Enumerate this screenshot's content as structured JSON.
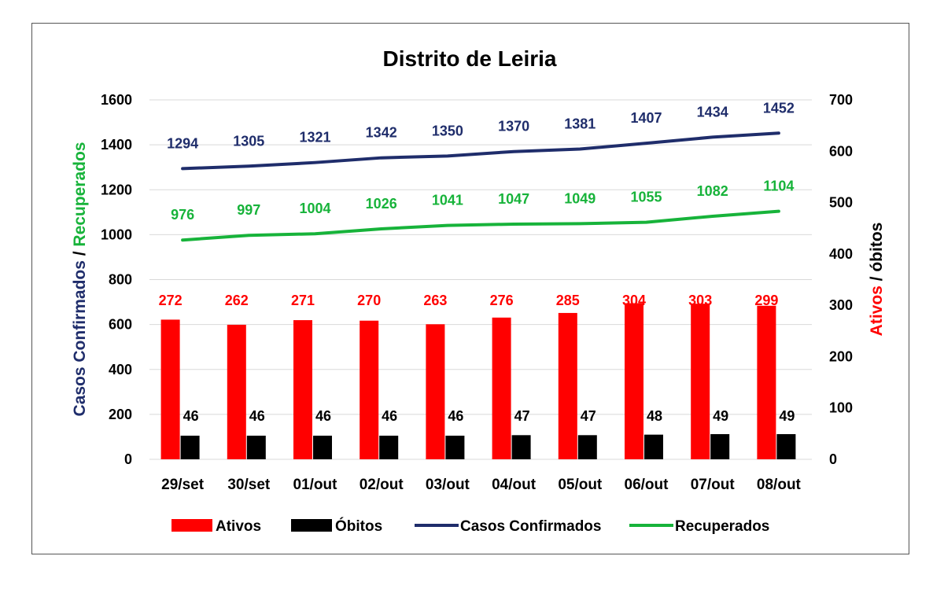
{
  "chart_data": {
    "type": "bar",
    "title": "Distrito de Leiria",
    "categories": [
      "29/set",
      "30/set",
      "01/out",
      "02/out",
      "03/out",
      "04/out",
      "05/out",
      "06/out",
      "07/out",
      "08/out"
    ],
    "ylabel_left_parts": [
      "Casos Confirmados",
      " / ",
      "Recuperados"
    ],
    "ylabel_right_parts": [
      "Ativos",
      " / ",
      "óbitos"
    ],
    "ylim_left": [
      0,
      1600
    ],
    "yticks_left": [
      0,
      200,
      400,
      600,
      800,
      1000,
      1200,
      1400,
      1600
    ],
    "ylim_right": [
      0,
      700
    ],
    "yticks_right": [
      0,
      100,
      200,
      300,
      400,
      500,
      600,
      700
    ],
    "grid": true,
    "legend_position": "bottom",
    "series": [
      {
        "name": "Ativos",
        "kind": "bar",
        "axis": "right",
        "color": "#ff0000",
        "values": [
          272,
          262,
          271,
          270,
          263,
          276,
          285,
          304,
          303,
          299
        ]
      },
      {
        "name": "Óbitos",
        "kind": "bar",
        "axis": "right",
        "color": "#000000",
        "values": [
          46,
          46,
          46,
          46,
          46,
          47,
          47,
          48,
          49,
          49
        ]
      },
      {
        "name": "Casos Confirmados",
        "kind": "line",
        "axis": "left",
        "color": "#1f2d6b",
        "values": [
          1294,
          1305,
          1321,
          1342,
          1350,
          1370,
          1381,
          1407,
          1434,
          1452
        ]
      },
      {
        "name": "Recuperados",
        "kind": "line",
        "axis": "left",
        "color": "#17b33a",
        "values": [
          976,
          997,
          1004,
          1026,
          1041,
          1047,
          1049,
          1055,
          1082,
          1104
        ]
      }
    ],
    "colors": {
      "confirmados": "#1f2d6b",
      "recuperados": "#17b33a",
      "ativos": "#ff0000",
      "obitos": "#000000"
    }
  }
}
